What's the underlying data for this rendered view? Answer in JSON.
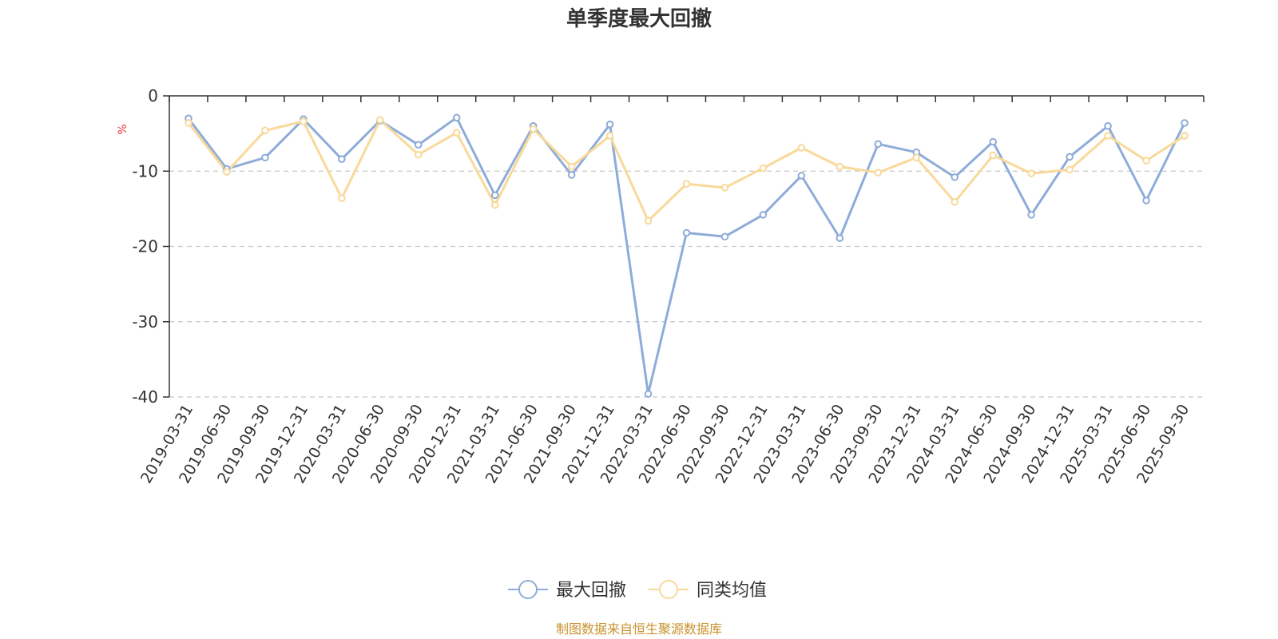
{
  "chart_data": {
    "type": "line",
    "title": "单季度最大回撤",
    "ylabel": "%",
    "xlabel": "",
    "ylim": [
      -40,
      0
    ],
    "yticks": [
      0,
      -10,
      -20,
      -30,
      -40
    ],
    "grid": true,
    "legend_position": "bottom",
    "categories": [
      "2019-03-31",
      "2019-06-30",
      "2019-09-30",
      "2019-12-31",
      "2020-03-31",
      "2020-06-30",
      "2020-09-30",
      "2020-12-31",
      "2021-03-31",
      "2021-06-30",
      "2021-09-30",
      "2021-12-31",
      "2022-03-31",
      "2022-06-30",
      "2022-09-30",
      "2022-12-31",
      "2023-03-31",
      "2023-06-30",
      "2023-09-30",
      "2023-12-31",
      "2024-03-31",
      "2024-06-30",
      "2024-09-30",
      "2024-12-31",
      "2025-03-31",
      "2025-06-30",
      "2025-09-30"
    ],
    "series": [
      {
        "name": "最大回撤",
        "color": "#8eacd9",
        "values": [
          -3.0,
          -9.7,
          -8.2,
          -3.1,
          -8.4,
          -3.3,
          -6.5,
          -2.9,
          -13.2,
          -4.0,
          -10.5,
          -3.8,
          -39.6,
          -18.2,
          -18.7,
          -15.8,
          -10.6,
          -18.9,
          -6.4,
          -7.5,
          -10.8,
          -6.1,
          -15.8,
          -8.1,
          -4.0,
          -13.9,
          -3.6
        ]
      },
      {
        "name": "同类均值",
        "color": "#f9d99a",
        "values": [
          -3.6,
          -10.1,
          -4.6,
          -3.4,
          -13.6,
          -3.2,
          -7.8,
          -4.9,
          -14.5,
          -4.4,
          -9.4,
          -5.3,
          -16.6,
          -11.7,
          -12.2,
          -9.6,
          -6.9,
          -9.4,
          -10.2,
          -8.2,
          -14.1,
          -7.9,
          -10.3,
          -9.8,
          -5.3,
          -8.6,
          -5.3
        ]
      }
    ],
    "source": "制图数据来自恒生聚源数据库"
  }
}
